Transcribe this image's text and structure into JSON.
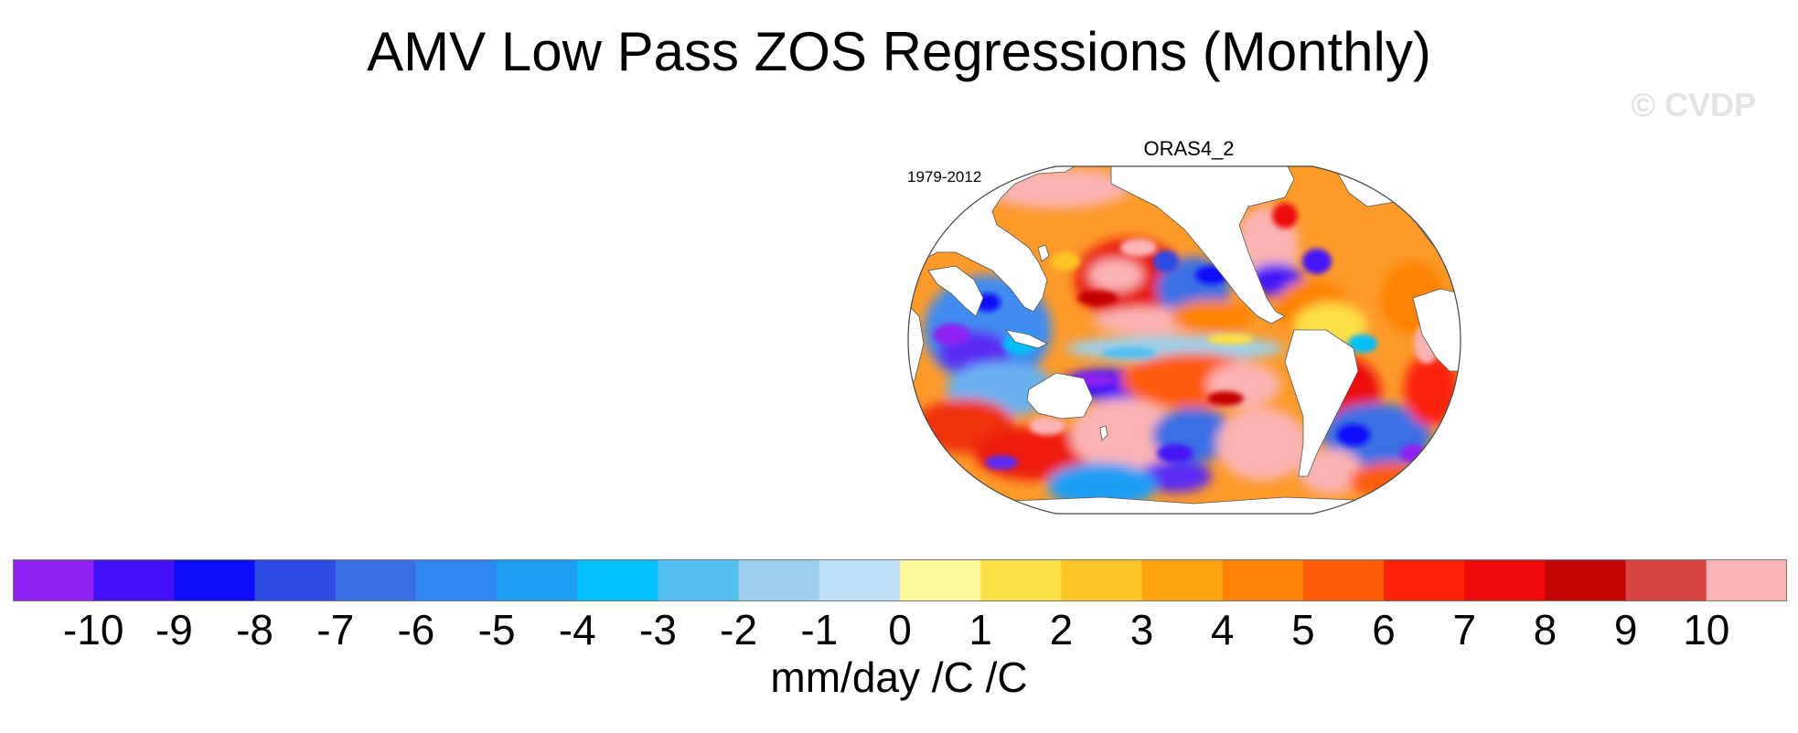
{
  "title": "AMV Low Pass ZOS Regressions (Monthly)",
  "watermark": "© CVDP",
  "panel": {
    "name": "ORAS4_2",
    "period": "1979-2012"
  },
  "chart_data": {
    "type": "heatmap",
    "title": "AMV Low Pass ZOS Regressions (Monthly)",
    "subtitle": "ORAS4_2",
    "period": "1979-2012",
    "projection": "Robinson (global map)",
    "variable": "ZOS regression on AMV",
    "units": "mm/day /C /C",
    "colorbar": {
      "levels": [
        -10,
        -9,
        -8,
        -7,
        -6,
        -5,
        -4,
        -3,
        -2,
        -1,
        0,
        1,
        2,
        3,
        4,
        5,
        6,
        7,
        8,
        9,
        10
      ],
      "tick_labels": [
        "-10",
        "-9",
        "-8",
        "-7",
        "-6",
        "-5",
        "-4",
        "-3",
        "-2",
        "-1",
        "0",
        "1",
        "2",
        "3",
        "4",
        "5",
        "6",
        "7",
        "8",
        "9",
        "10"
      ],
      "colors": [
        "#8e20f0",
        "#4412f6",
        "#0d0dfa",
        "#2d4ce4",
        "#3a6fe4",
        "#2f87f4",
        "#1f9ef5",
        "#02c0fb",
        "#52bfef",
        "#9ad0ee",
        "#bde2f7",
        "#fef89c",
        "#fde047",
        "#fdc424",
        "#fda50e",
        "#fd8205",
        "#fe5c08",
        "#fb2208",
        "#ec0a0a",
        "#c40606",
        "#d94444",
        "#fbb3b3"
      ]
    }
  }
}
